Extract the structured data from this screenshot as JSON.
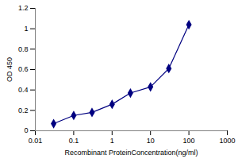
{
  "chart_data": {
    "type": "line",
    "x_label": "Recombinant ProteinConcentration(ng/ml)",
    "y_label": "OD 450",
    "x": [
      0.03,
      0.1,
      0.3,
      1,
      3,
      10,
      30,
      100
    ],
    "values": [
      0.07,
      0.15,
      0.18,
      0.26,
      0.37,
      0.43,
      0.61,
      1.04
    ],
    "color": "#000080",
    "marker": "diamond",
    "log": "x",
    "grid": false,
    "xlim": [
      0.01,
      1000
    ],
    "xticks": [
      0.01,
      0.1,
      1,
      10,
      100,
      1000
    ],
    "ylim": [
      0,
      1.2
    ],
    "yticks": [
      0,
      0.2,
      0.4,
      0.6,
      0.8,
      1,
      1.2
    ]
  }
}
